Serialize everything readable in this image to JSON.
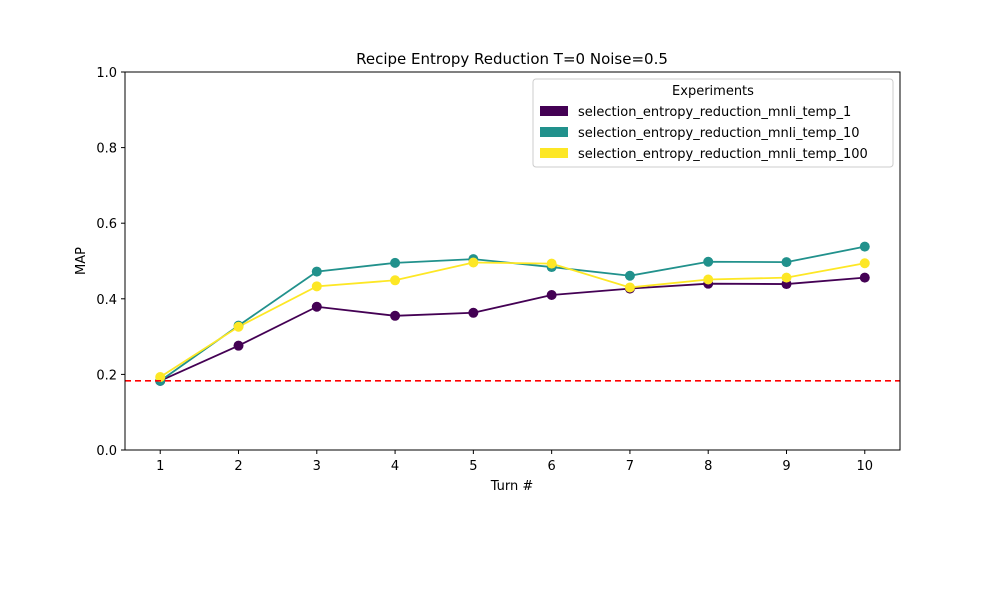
{
  "chart_data": {
    "type": "line",
    "title": "Recipe Entropy Reduction T=0 Noise=0.5",
    "xlabel": "Turn #",
    "ylabel": "MAP",
    "x": [
      1,
      2,
      3,
      4,
      5,
      6,
      7,
      8,
      9,
      10
    ],
    "xlim": [
      0.55,
      10.45
    ],
    "ylim": [
      0.0,
      1.0
    ],
    "yticks": [
      "0.0",
      "0.2",
      "0.4",
      "0.6",
      "0.8",
      "1.0"
    ],
    "xticks": [
      "1",
      "2",
      "3",
      "4",
      "5",
      "6",
      "7",
      "8",
      "9",
      "10"
    ],
    "grid": false,
    "legend": {
      "title": "Experiments",
      "placement": "top-right"
    },
    "baseline": {
      "value": 0.183,
      "color": "#ff0000",
      "style": "dashed"
    },
    "series": [
      {
        "name": "selection_entropy_reduction_mnli_temp_1",
        "color": "#440154",
        "values": [
          0.183,
          0.276,
          0.379,
          0.355,
          0.363,
          0.41,
          0.427,
          0.44,
          0.439,
          0.456
        ]
      },
      {
        "name": "selection_entropy_reduction_mnli_temp_10",
        "color": "#21918c",
        "values": [
          0.183,
          0.329,
          0.472,
          0.495,
          0.505,
          0.484,
          0.461,
          0.498,
          0.497,
          0.538
        ]
      },
      {
        "name": "selection_entropy_reduction_mnli_temp_100",
        "color": "#fde725",
        "values": [
          0.193,
          0.326,
          0.433,
          0.449,
          0.496,
          0.493,
          0.43,
          0.451,
          0.456,
          0.494
        ]
      }
    ]
  }
}
